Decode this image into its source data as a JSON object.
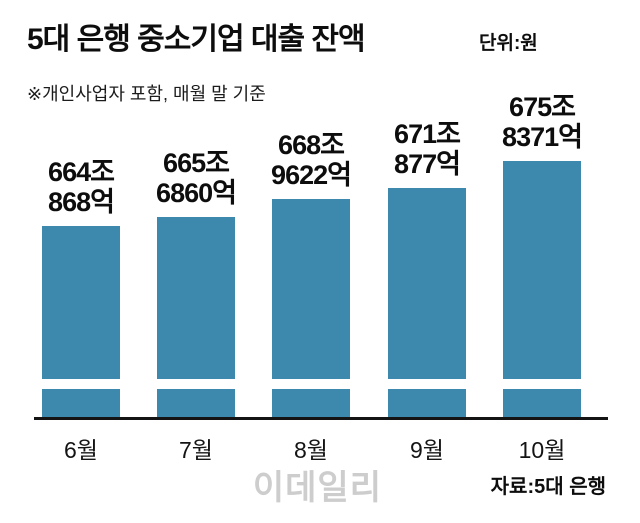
{
  "header": {
    "title": "5대 은행 중소기업 대출 잔액",
    "unit": "단위:원",
    "note": "※개인사업자 포함, 매월 말 기준"
  },
  "chart_data": {
    "type": "bar",
    "title": "5대 은행 중소기업 대출 잔액",
    "categories": [
      "6월",
      "7월",
      "8월",
      "9월",
      "10월"
    ],
    "values": [
      664.0868,
      665.686,
      668.9622,
      671.0877,
      675.8371
    ],
    "value_unit": "조원",
    "value_labels": [
      [
        "664조",
        "868억"
      ],
      [
        "665조",
        "6860억"
      ],
      [
        "668조",
        "9622억"
      ],
      [
        "671조",
        "877억"
      ],
      [
        "675조",
        "8371억"
      ]
    ],
    "ylim": [
      629,
      676
    ],
    "axis_break": true,
    "grid": false,
    "legend": "none",
    "bar_color": "#3c89ad",
    "axis_color": "#141414"
  },
  "footer": {
    "watermark": "이데일리",
    "source": "자료:5대 은행"
  }
}
